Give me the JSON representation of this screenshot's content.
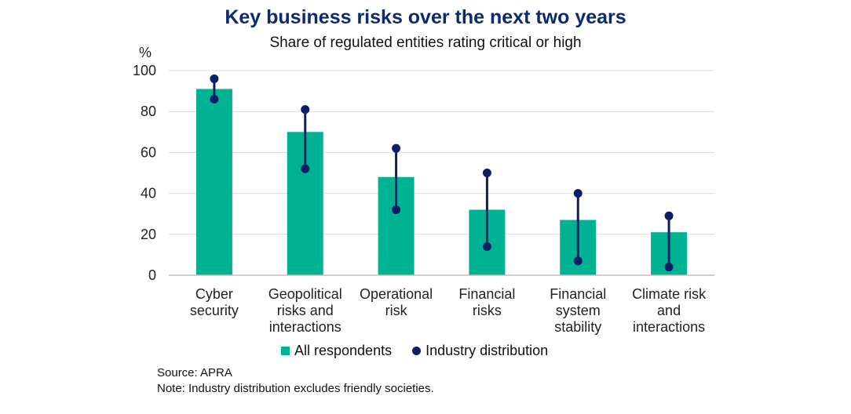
{
  "chart_data": {
    "type": "bar",
    "title": "Key business risks over the next two years",
    "subtitle": "Share of regulated entities rating critical or high",
    "ylabel": "%",
    "ylim": [
      0,
      100
    ],
    "yticks": [
      0,
      20,
      40,
      60,
      80,
      100
    ],
    "grid": true,
    "legend_placement": "bottom",
    "categories": [
      [
        "Cyber",
        "security"
      ],
      [
        "Geopolitical",
        "risks and",
        "interactions"
      ],
      [
        "Operational",
        "risk"
      ],
      [
        "Financial",
        "risks"
      ],
      [
        "Financial",
        "system",
        "stability"
      ],
      [
        "Climate risk",
        "and",
        "interactions"
      ]
    ],
    "series": [
      {
        "name": "All respondents",
        "type": "bar",
        "color": "#00b294",
        "values": [
          91,
          70,
          48,
          32,
          27,
          21
        ]
      },
      {
        "name": "Industry distribution",
        "type": "range",
        "color": "#0b1f66",
        "low": [
          86,
          52,
          32,
          14,
          7,
          4
        ],
        "high": [
          96,
          81,
          62,
          50,
          40,
          29
        ]
      }
    ]
  },
  "footer": {
    "source": "Source: APRA",
    "note": "Note: Industry distribution excludes friendly societies."
  }
}
